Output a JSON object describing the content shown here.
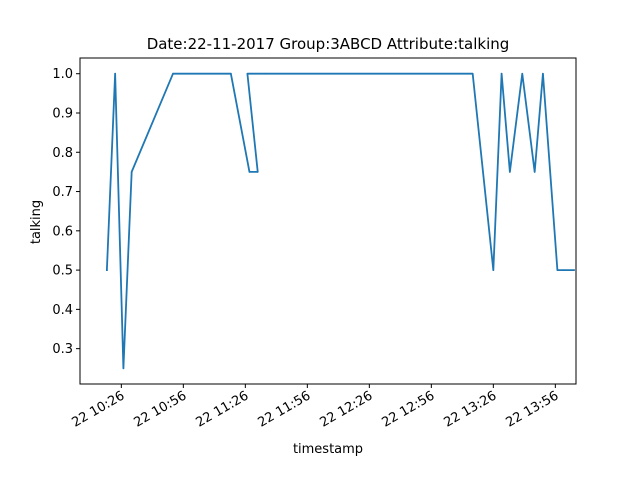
{
  "chart_data": {
    "type": "line",
    "title": "Date:22-11-2017  Group:3ABCD Attribute:talking",
    "xlabel": "timestamp",
    "ylabel": "talking",
    "x_tick_labels": [
      "22 10:26",
      "22 10:56",
      "22 11:26",
      "22 11:56",
      "22 12:26",
      "22 12:56",
      "22 13:26",
      "22 13:56"
    ],
    "x_tick_times": [
      "10:26",
      "10:56",
      "11:26",
      "11:56",
      "12:26",
      "12:56",
      "13:26",
      "13:56"
    ],
    "y_ticks": [
      0.3,
      0.4,
      0.5,
      0.6,
      0.7,
      0.8,
      0.9,
      1.0
    ],
    "y_tick_labels": [
      "0.3",
      "0.4",
      "0.5",
      "0.6",
      "0.7",
      "0.8",
      "0.9",
      "1.0"
    ],
    "xlim": [
      "10:06",
      "14:06"
    ],
    "ylim": [
      0.21,
      1.04
    ],
    "grid": false,
    "legend": false,
    "color": "#1f77b4",
    "series": [
      {
        "x": [
          "10:19",
          "10:23",
          "10:27",
          "10:31",
          "10:51",
          "11:19",
          "11:28",
          "11:32",
          "11:27",
          "11:29",
          "11:36",
          "13:16",
          "13:26",
          "13:30",
          "13:34",
          "13:40",
          "13:46",
          "13:50",
          "13:57",
          "14:00",
          "14:05"
        ],
        "y": [
          0.5,
          1.0,
          0.25,
          0.75,
          1.0,
          1.0,
          0.75,
          0.75,
          1.0,
          1.0,
          1.0,
          1.0,
          0.5,
          1.0,
          0.75,
          1.0,
          0.75,
          1.0,
          0.5,
          0.5,
          0.5
        ]
      }
    ]
  }
}
